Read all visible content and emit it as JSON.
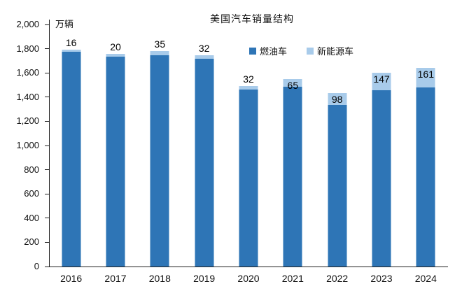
{
  "title": "美国汽车销量结构",
  "unit_label": "万辆",
  "legend": [
    {
      "label": "燃油车",
      "color": "#2E75B6"
    },
    {
      "label": "新能源车",
      "color": "#A8CBEA"
    }
  ],
  "colors": {
    "fuel_bar": "#2E75B6",
    "nev_bar": "#A8CBEA",
    "axis": "#1f1f1f",
    "text": "#000000"
  },
  "chart_data": {
    "type": "bar",
    "stacked": true,
    "title": "美国汽车销量结构",
    "ylabel": "万辆",
    "xlabel": "",
    "ylim": [
      0,
      2000
    ],
    "ytick_interval": 200,
    "ytick_labels": [
      "2,000",
      "1,800",
      "1,600",
      "1,400",
      "1,200",
      "1,000",
      "800",
      "600",
      "400",
      "200",
      "0"
    ],
    "grid": false,
    "legend_position": "top-center",
    "categories": [
      "2016",
      "2017",
      "2018",
      "2019",
      "2020",
      "2021",
      "2022",
      "2023",
      "2024"
    ],
    "series": [
      {
        "name": "燃油车",
        "values": [
          1775,
          1735,
          1745,
          1715,
          1460,
          1485,
          1335,
          1455,
          1480
        ]
      },
      {
        "name": "新能源车",
        "values": [
          16,
          20,
          35,
          32,
          32,
          65,
          98,
          147,
          161
        ]
      }
    ],
    "data_labels": {
      "series": "新能源车",
      "values": [
        "16",
        "20",
        "35",
        "32",
        "32",
        "65",
        "98",
        "147",
        "161"
      ],
      "positions": [
        "above",
        "above",
        "above",
        "above",
        "above",
        "inside",
        "inside",
        "inside",
        "inside"
      ]
    }
  }
}
